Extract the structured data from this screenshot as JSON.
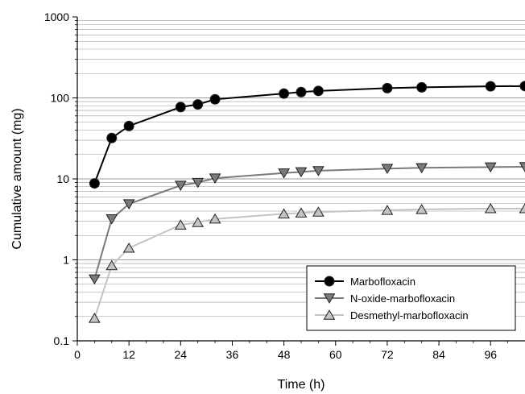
{
  "chart_data": {
    "type": "line",
    "xlabel": "Time (h)",
    "ylabel": "Cumulative amount (mg)",
    "xlim": [
      0,
      104
    ],
    "ylim": [
      0.1,
      1000
    ],
    "y_scale": "log",
    "x_ticks": [
      0,
      12,
      24,
      36,
      48,
      60,
      72,
      84,
      96
    ],
    "y_ticks": [
      0.1,
      1,
      10,
      100,
      1000
    ],
    "y_tick_labels": [
      "0.1",
      "1",
      "10",
      "100",
      "1000"
    ],
    "grid": "horizontal gridlines at each log-decade subdivision",
    "legend_position": "bottom-right",
    "series": [
      {
        "name": "Marbofloxacin",
        "color": "#000000",
        "marker": "circle",
        "x": [
          4,
          8,
          12,
          24,
          28,
          32,
          48,
          52,
          56,
          72,
          80,
          96,
          104
        ],
        "y": [
          8.8,
          32,
          45,
          77,
          83,
          96,
          113,
          118,
          122,
          132,
          135,
          139,
          140
        ]
      },
      {
        "name": "N-oxide-marbofloxacin",
        "color": "#7a7a7a",
        "marker": "triangle-down",
        "x": [
          4,
          8,
          12,
          24,
          28,
          32,
          48,
          52,
          56,
          72,
          80,
          96,
          104
        ],
        "y": [
          0.58,
          3.2,
          4.9,
          8.3,
          9.0,
          10.2,
          11.8,
          12.2,
          12.6,
          13.4,
          13.7,
          14.0,
          14.1
        ]
      },
      {
        "name": "Desmethyl-marbofloxacin",
        "color": "#c4c4c4",
        "marker": "triangle-up",
        "x": [
          4,
          8,
          12,
          24,
          28,
          32,
          48,
          52,
          56,
          72,
          80,
          96,
          104
        ],
        "y": [
          0.19,
          0.85,
          1.4,
          2.7,
          2.9,
          3.2,
          3.7,
          3.8,
          3.9,
          4.1,
          4.2,
          4.3,
          4.3
        ]
      }
    ]
  }
}
